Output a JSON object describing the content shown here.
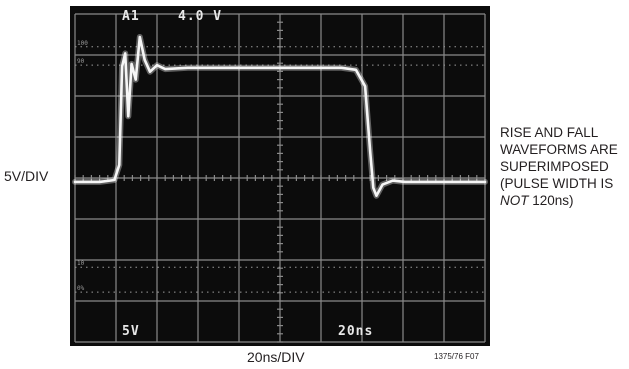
{
  "chart_data": {
    "type": "line",
    "title": "",
    "xlabel": "20ns/DIV",
    "ylabel": "5V/DIV",
    "x_units": "ns",
    "y_units": "V",
    "xlim": [
      0,
      200
    ],
    "ylim": [
      -25,
      25
    ],
    "grid": true,
    "screen_readouts": {
      "channel": "A1",
      "level": "4.0  V",
      "vertical_scale": "5V",
      "horizontal_scale": "20ns"
    },
    "reference_marks": [
      "100",
      "90",
      "10",
      "0%"
    ],
    "series": [
      {
        "x": [
          0,
          12,
          19.2,
          21.6,
          23.0,
          24.5,
          26.0,
          27.6,
          29.6,
          31.6,
          34.0,
          36.6,
          40.0,
          44.0,
          55.0,
          80.0,
          110.0,
          130.0,
          137.0,
          141.5,
          144.0,
          145.5,
          147.0,
          150.0,
          155.0,
          161.0,
          168.0,
          200.0
        ],
        "y": [
          -0.6,
          -0.6,
          -0.3,
          2.0,
          17.0,
          19.0,
          9.4,
          17.4,
          15.0,
          21.5,
          18.0,
          16.2,
          17.2,
          16.6,
          16.8,
          16.8,
          16.8,
          16.8,
          16.5,
          14.0,
          4.0,
          -1.5,
          -2.7,
          -1.0,
          -0.4,
          -0.6,
          -0.6,
          -0.6
        ]
      }
    ]
  },
  "labels": {
    "y_axis": "5V/DIV",
    "x_axis": "20ns/DIV",
    "note": [
      "RISE AND FALL",
      "WAVEFORMS ARE",
      "SUPERIMPOSED",
      "(PULSE WIDTH IS"
    ],
    "note_italic": "NOT",
    "note_tail": " 120ns)",
    "figure_id": "1375/76 F07"
  },
  "colors": {
    "screen": "#0c0c0c",
    "grid": "#8a8a8a",
    "trace": "#f6f6f6",
    "ink": "#231f20"
  }
}
